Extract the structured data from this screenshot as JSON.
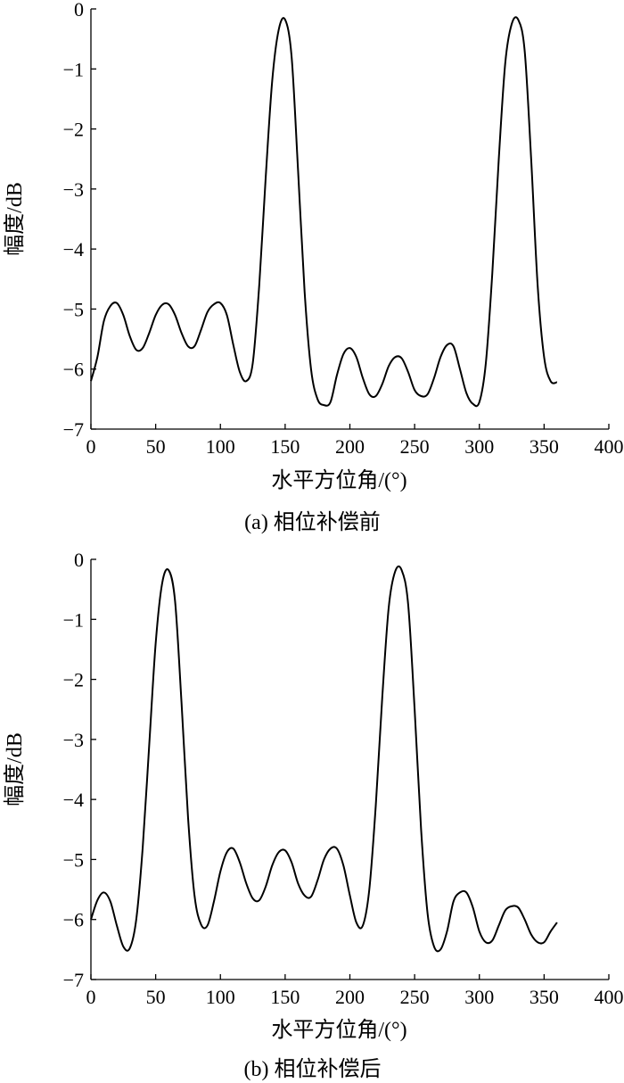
{
  "chart_data": [
    {
      "type": "line",
      "caption": "(a) 相位补偿前",
      "xlabel": "水平方位角/(°)",
      "ylabel": "幅度/dB",
      "xlim": [
        0,
        400
      ],
      "ylim": [
        -7,
        0
      ],
      "xticks": [
        0,
        50,
        100,
        150,
        200,
        250,
        300,
        350,
        400
      ],
      "yticks": [
        0,
        -1,
        -2,
        -3,
        -4,
        -5,
        -6,
        -7
      ],
      "grid": false,
      "series": [
        {
          "x": [
            0,
            5,
            10,
            15,
            20,
            25,
            30,
            35,
            40,
            45,
            50,
            55,
            60,
            65,
            70,
            75,
            80,
            85,
            90,
            95,
            100,
            105,
            110,
            115,
            120,
            125,
            130,
            135,
            140,
            145,
            150,
            155,
            160,
            165,
            170,
            175,
            180,
            185,
            190,
            195,
            200,
            205,
            210,
            215,
            220,
            225,
            230,
            235,
            240,
            245,
            250,
            255,
            260,
            265,
            270,
            275,
            280,
            285,
            290,
            295,
            300,
            305,
            310,
            315,
            320,
            325,
            330,
            335,
            340,
            345,
            350,
            355,
            360
          ],
          "y": [
            -6.2,
            -5.8,
            -5.2,
            -4.95,
            -4.9,
            -5.1,
            -5.45,
            -5.68,
            -5.65,
            -5.4,
            -5.1,
            -4.93,
            -4.92,
            -5.1,
            -5.4,
            -5.62,
            -5.62,
            -5.35,
            -5.05,
            -4.92,
            -4.9,
            -5.1,
            -5.6,
            -6.05,
            -6.2,
            -5.9,
            -4.6,
            -2.8,
            -1.2,
            -0.35,
            -0.18,
            -0.8,
            -2.7,
            -4.7,
            -6.0,
            -6.5,
            -6.6,
            -6.55,
            -6.1,
            -5.75,
            -5.65,
            -5.8,
            -6.15,
            -6.42,
            -6.45,
            -6.25,
            -5.95,
            -5.8,
            -5.82,
            -6.05,
            -6.35,
            -6.45,
            -6.42,
            -6.15,
            -5.8,
            -5.6,
            -5.62,
            -6.0,
            -6.4,
            -6.58,
            -6.55,
            -5.9,
            -4.4,
            -2.5,
            -0.9,
            -0.25,
            -0.18,
            -0.7,
            -2.5,
            -4.6,
            -5.8,
            -6.2,
            -6.22
          ]
        }
      ]
    },
    {
      "type": "line",
      "caption": "(b) 相位补偿后",
      "xlabel": "水平方位角/(°)",
      "ylabel": "幅度/dB",
      "xlim": [
        0,
        400
      ],
      "ylim": [
        -7,
        0
      ],
      "xticks": [
        0,
        50,
        100,
        150,
        200,
        250,
        300,
        350,
        400
      ],
      "yticks": [
        0,
        -1,
        -2,
        -3,
        -4,
        -5,
        -6,
        -7
      ],
      "grid": false,
      "series": [
        {
          "x": [
            0,
            5,
            10,
            15,
            20,
            25,
            30,
            35,
            40,
            45,
            50,
            55,
            60,
            65,
            70,
            75,
            80,
            85,
            90,
            95,
            100,
            105,
            110,
            115,
            120,
            125,
            130,
            135,
            140,
            145,
            150,
            155,
            160,
            165,
            170,
            175,
            180,
            185,
            190,
            195,
            200,
            205,
            210,
            215,
            220,
            225,
            230,
            235,
            240,
            245,
            250,
            255,
            260,
            265,
            270,
            275,
            280,
            285,
            290,
            295,
            300,
            305,
            310,
            315,
            320,
            325,
            330,
            335,
            340,
            345,
            350,
            355,
            360
          ],
          "y": [
            -6.0,
            -5.68,
            -5.55,
            -5.7,
            -6.1,
            -6.45,
            -6.48,
            -6.0,
            -4.8,
            -3.1,
            -1.4,
            -0.4,
            -0.18,
            -0.7,
            -2.4,
            -4.3,
            -5.6,
            -6.08,
            -6.1,
            -5.7,
            -5.2,
            -4.88,
            -4.82,
            -5.05,
            -5.4,
            -5.65,
            -5.68,
            -5.45,
            -5.1,
            -4.88,
            -4.85,
            -5.05,
            -5.4,
            -5.6,
            -5.62,
            -5.35,
            -5.0,
            -4.82,
            -4.82,
            -5.1,
            -5.6,
            -6.05,
            -6.1,
            -5.5,
            -4.1,
            -2.3,
            -0.8,
            -0.2,
            -0.18,
            -0.75,
            -2.5,
            -4.5,
            -5.9,
            -6.45,
            -6.5,
            -6.2,
            -5.7,
            -5.55,
            -5.55,
            -5.8,
            -6.2,
            -6.38,
            -6.35,
            -6.1,
            -5.85,
            -5.78,
            -5.8,
            -6.0,
            -6.25,
            -6.38,
            -6.38,
            -6.2,
            -6.05
          ]
        }
      ]
    }
  ]
}
